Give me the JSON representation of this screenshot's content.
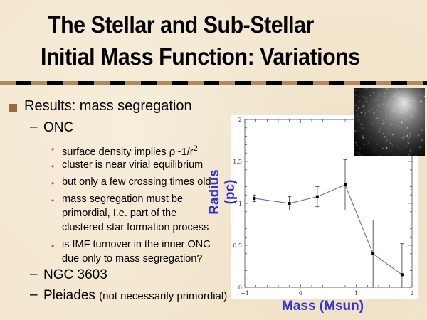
{
  "title": {
    "line1": "The Stellar and Sub-Stellar",
    "line2": "Initial Mass Function: Variations"
  },
  "bullets": {
    "main": "Results:  mass segregation",
    "onc": "ONC",
    "onc_items": [
      "surface density implies ",
      "cluster is near virial equilibrium",
      "but only a few crossing times old",
      "mass segregation must be",
      "primordial, I.e. part of the",
      "clustered star formation process",
      "is IMF turnover in the inner ONC",
      "due only to mass segregation?"
    ],
    "rho_formula": {
      "rho": "ρ",
      "rest": "~1/r",
      "exp": "2"
    },
    "ngc": "NGC 3603",
    "pleiades": "Pleiades",
    "pleiades_note": "(not necessarily primordial)"
  },
  "colors": {
    "accent_square": "#9c6b3c",
    "sub_bullet": "#e8421c",
    "axis_label": "#3333cc",
    "line": "#5555ee"
  },
  "image": {
    "description_icon": "star-cluster-photo"
  },
  "chart_data": {
    "type": "line",
    "xlabel": "Mass (Msun)",
    "ylabel": "Radius (pc)",
    "xlim": [
      -1,
      2
    ],
    "ylim": [
      0,
      2
    ],
    "xticks": [
      "−1",
      "0",
      "1",
      "2"
    ],
    "yticks": [
      "0",
      "0.5",
      "1",
      "1.5",
      "2"
    ],
    "x": [
      -0.83,
      -0.2,
      0.3,
      0.8,
      1.3,
      1.82
    ],
    "y": [
      1.06,
      1.0,
      1.08,
      1.22,
      0.4,
      0.15
    ],
    "yerr": [
      0.04,
      0.08,
      0.12,
      0.3,
      0.4,
      0.37
    ],
    "grid": false
  }
}
